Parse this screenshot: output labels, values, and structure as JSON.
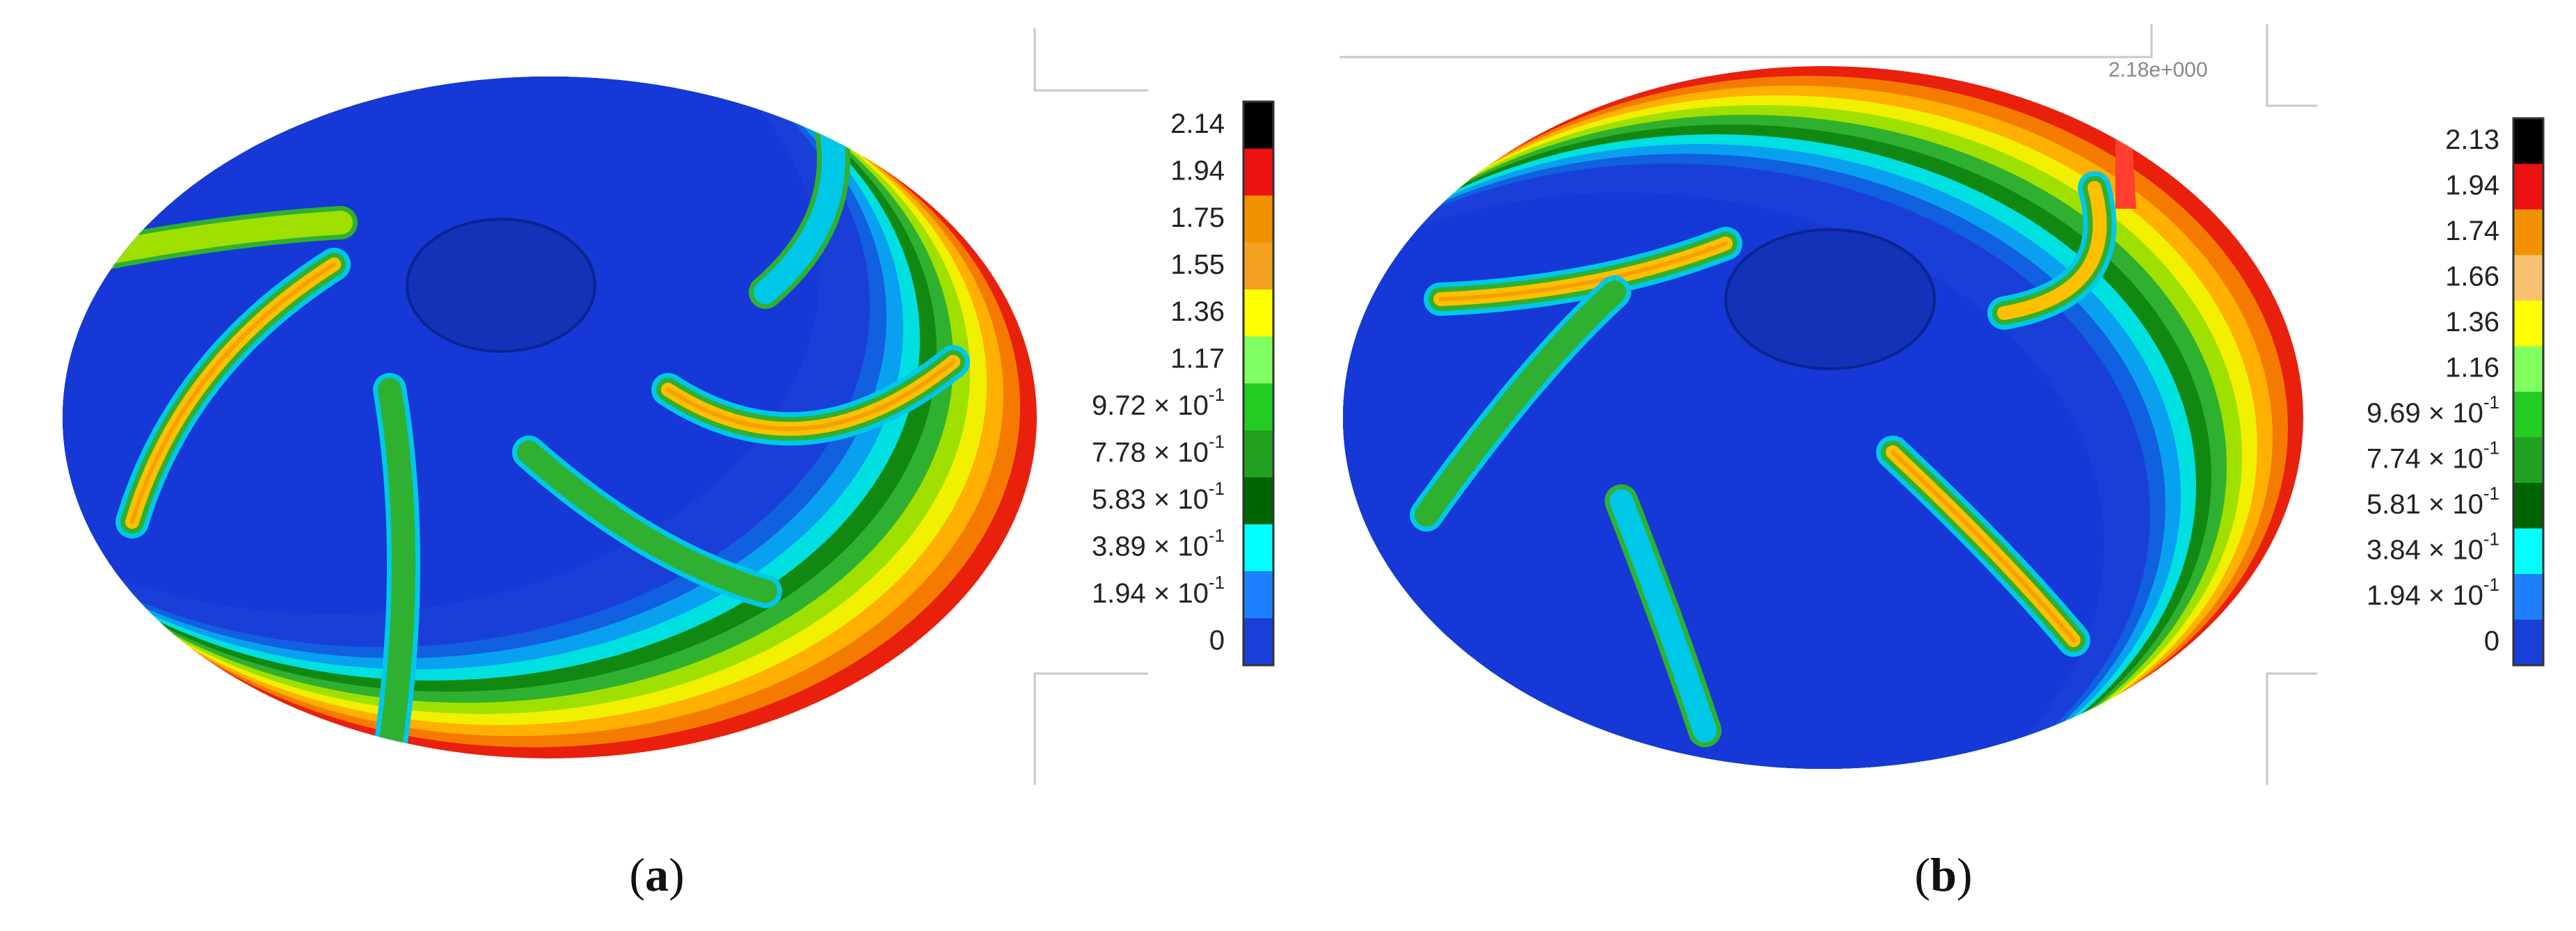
{
  "panels": [
    {
      "caption": [
        "(",
        "a",
        ")"
      ],
      "legend": [
        {
          "text": "2.14"
        },
        {
          "text": "1.94"
        },
        {
          "text": "1.75"
        },
        {
          "text": "1.55"
        },
        {
          "text": "1.36"
        },
        {
          "text": "1.17"
        },
        {
          "text": "9.72 × 10",
          "sup": "-1"
        },
        {
          "text": "7.78 × 10",
          "sup": "-1"
        },
        {
          "text": "5.83 × 10",
          "sup": "-1"
        },
        {
          "text": "3.89 × 10",
          "sup": "-1"
        },
        {
          "text": "1.94 × 10",
          "sup": "-1"
        },
        {
          "text": "0"
        }
      ]
    },
    {
      "caption": [
        "(",
        "b",
        ")"
      ],
      "annotation": "2.18e+000",
      "legend": [
        {
          "text": "2.13"
        },
        {
          "text": "1.94"
        },
        {
          "text": "1.74"
        },
        {
          "text": "1.66"
        },
        {
          "text": "1.36"
        },
        {
          "text": "1.16"
        },
        {
          "text": "9.69 × 10",
          "sup": "-1"
        },
        {
          "text": "7.74 × 10",
          "sup": "-1"
        },
        {
          "text": "5.81 × 10",
          "sup": "-1"
        },
        {
          "text": "3.84 × 10",
          "sup": "-1"
        },
        {
          "text": "1.94 × 10",
          "sup": "-1"
        },
        {
          "text": "0"
        }
      ]
    }
  ]
}
